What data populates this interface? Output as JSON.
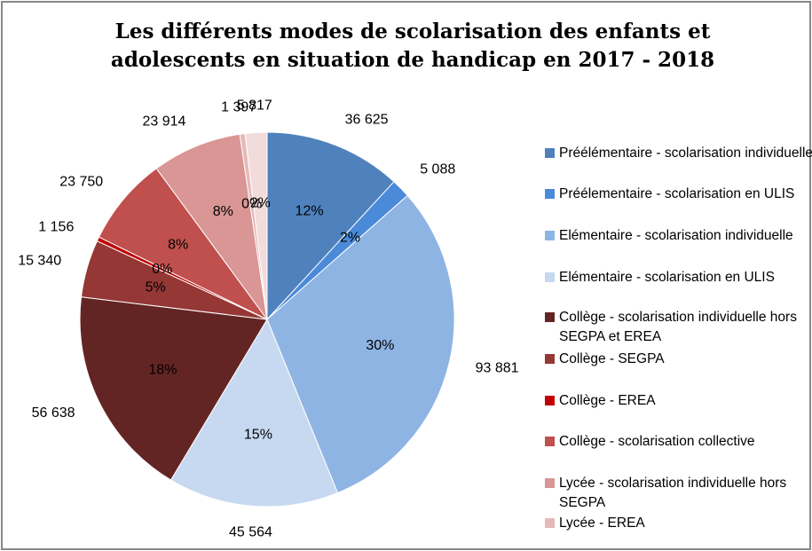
{
  "chart_data": {
    "type": "pie",
    "title": "Les différents modes de scolarisation des enfants et adolescents en situation de handicap en 2017 - 2018",
    "categories": [
      "Préélémentaire - scolarisation individuelle",
      "Préélementaire - scolarisation en ULIS",
      "Elémentaire - scolarisation individuelle",
      "Elémentaire - scolarisation en ULIS",
      "Collège - scolarisation individuelle hors SEGPA et EREA",
      "Collège - SEGPA",
      "Collège - EREA",
      "Collège - scolarisation collective",
      "Lycée - scolarisation individuelle hors SEGPA",
      "Lycée - EREA",
      null
    ],
    "values": [
      36625,
      5088,
      93881,
      45564,
      56638,
      15340,
      1156,
      23750,
      23914,
      1397,
      5817
    ],
    "value_labels": [
      "36 625",
      "5 088",
      "93 881",
      "45 564",
      "56 638",
      "15 340",
      "1 156",
      "23 750",
      "23 914",
      "1 397",
      "5 817"
    ],
    "percent_labels": [
      "12%",
      "2%",
      "30%",
      "15%",
      "18%",
      "5%",
      "0%",
      "8%",
      "8%",
      "0%",
      "2%"
    ],
    "colors": [
      "#4f81bd",
      "#4a8ad8",
      "#8eb4e3",
      "#c6d9f1",
      "#632523",
      "#953735",
      "#c00000",
      "#c0504d",
      "#d99694",
      "#e6b9b8",
      "#f2dcdb"
    ],
    "legend": "right"
  }
}
